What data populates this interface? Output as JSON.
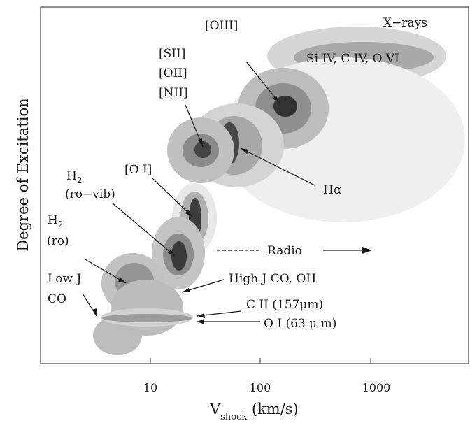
{
  "axes": {
    "ylabel": "Degree of Excitation",
    "xlabel_main": "V",
    "xlabel_sub": "shock",
    "xlabel_unit": " (km/s)",
    "x_scale": "log",
    "x_ticks": [
      "10",
      "100",
      "1000"
    ]
  },
  "labels": {
    "xrays": "X−rays",
    "siiv": "Si IV, C IV, O VI",
    "oiii": "[OIII]",
    "sii": "[SII]",
    "oii": "[OII]",
    "nii": "[NII]",
    "halpha": "Hα",
    "oi_forbidden": "[O I]",
    "h2_rovib_main": "H",
    "h2_rovib_sub": "2",
    "h2_rovib_paren": "(ro−vib)",
    "h2_ro_main": "H",
    "h2_ro_sub": "2",
    "h2_ro_paren": "(ro)",
    "radio": "Radio",
    "lowj_line1": "Low J",
    "lowj_line2": "CO",
    "highj": "High J CO, OH",
    "cii": "C II (157μm)",
    "oi63": "O I (63 μ m)"
  },
  "colors": {
    "outer": "#d8d8d8",
    "faint": "#eeeeee",
    "mid": "#b2b2b2",
    "inner": "#8a8a8a",
    "dark": "#4a4a4a",
    "core": "#2c2c2c"
  }
}
